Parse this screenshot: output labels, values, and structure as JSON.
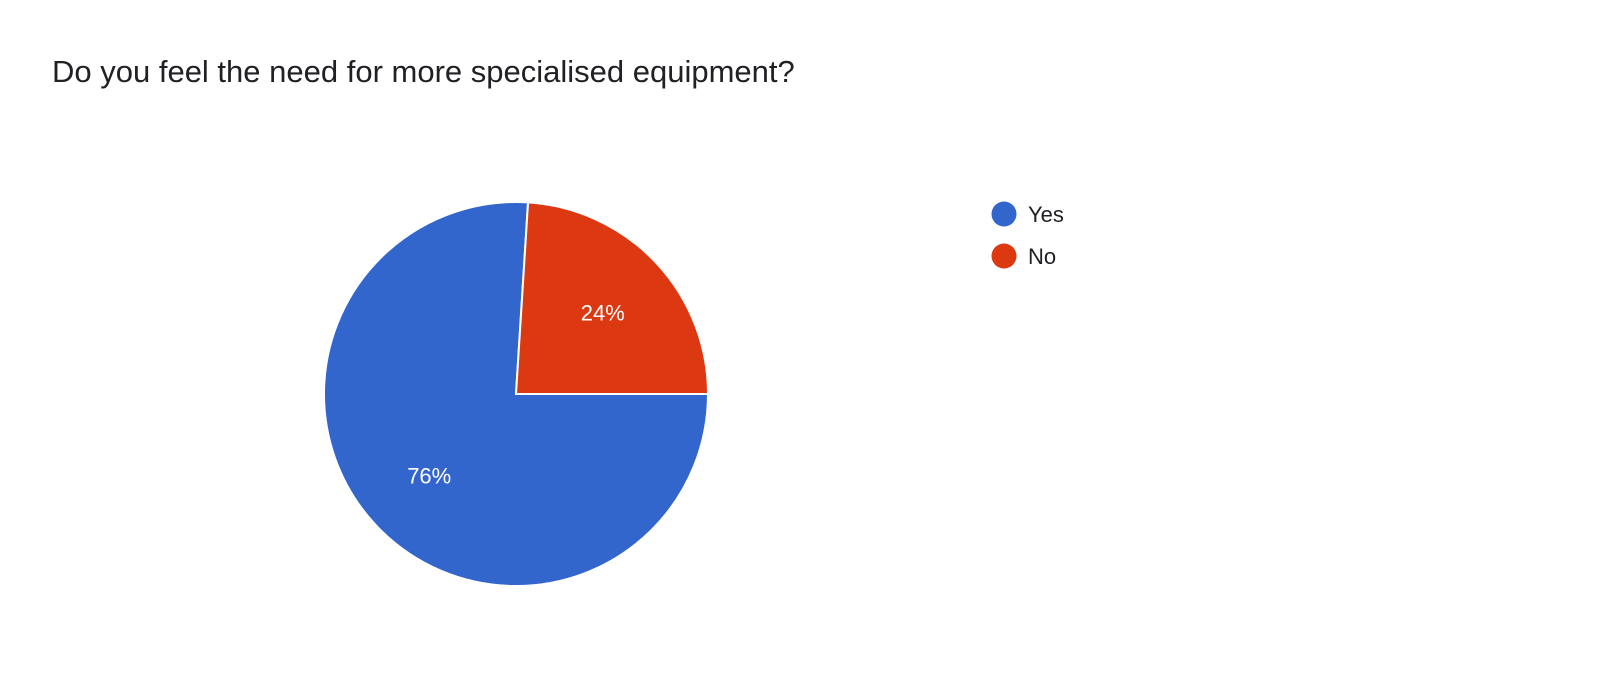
{
  "chart_data": {
    "type": "pie",
    "title": "Do you feel the need for more specialised equipment?",
    "categories": [
      "Yes",
      "No"
    ],
    "values": [
      76,
      24
    ],
    "labels": [
      "76%",
      "24%"
    ],
    "colors": [
      "#3366cc",
      "#dc3912"
    ],
    "legend": "right"
  }
}
